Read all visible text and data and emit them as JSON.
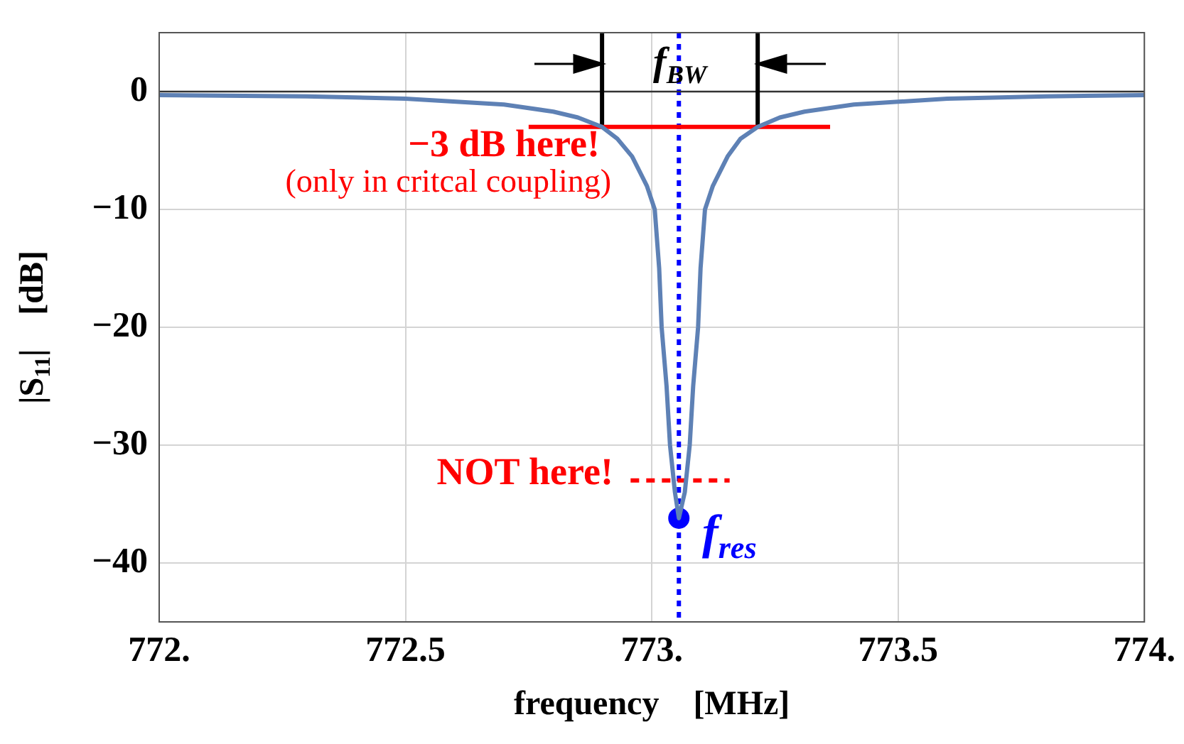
{
  "chart_data": {
    "type": "line",
    "xlabel": "frequency    [MHz]",
    "ylabel": "|S$_{11}$|    [dB]",
    "xlim": [
      772,
      774
    ],
    "xticks": [
      {
        "value": 772,
        "label": "772."
      },
      772.5,
      {
        "value": 773,
        "label": "773."
      },
      773.5,
      {
        "value": 774,
        "label": "774."
      }
    ],
    "ylim": [
      -45,
      5
    ],
    "yticks": [
      {
        "value": -40,
        "label": "−40"
      },
      {
        "value": -30,
        "label": "−30"
      },
      {
        "value": -20,
        "label": "−20"
      },
      {
        "value": -10,
        "label": "−10"
      },
      0
    ],
    "grid": true,
    "legend": false,
    "series": [
      {
        "type": "line",
        "color": "#5e81b5",
        "x": [
          772.0,
          772.3,
          772.5,
          772.7,
          772.8,
          772.85,
          772.899,
          772.93,
          772.96,
          772.99,
          773.006,
          773.015,
          773.02,
          773.03,
          773.037,
          773.047,
          773.055,
          773.067,
          773.077,
          773.084,
          773.094,
          773.099,
          773.108,
          773.124,
          773.154,
          773.18,
          773.215,
          773.26,
          773.31,
          773.41,
          773.6,
          773.8,
          774.0
        ],
        "values": [
          -0.3,
          -0.4,
          -0.6,
          -1.1,
          -1.7,
          -2.2,
          -3.0,
          -4.0,
          -5.5,
          -8,
          -10,
          -15,
          -20,
          -25,
          -30,
          -34,
          -36.2,
          -34,
          -30,
          -25,
          -20,
          -15,
          -10,
          -8,
          -5.5,
          -4.0,
          -3.0,
          -2.2,
          -1.7,
          -1.1,
          -0.6,
          -0.4,
          -0.3
        ]
      },
      {
        "type": "line",
        "color": "#ff0000",
        "x": [
          772.75,
          773.362
        ],
        "values": [
          -3,
          -3
        ]
      },
      {
        "type": "line",
        "color": "#ff0000",
        "line_style": "dashed",
        "x": [
          772.957,
          773.158
        ],
        "values": [
          -33,
          -33
        ]
      },
      {
        "type": "line",
        "color": "#000000",
        "x": [
          772.899,
          772.899
        ],
        "values": [
          -3,
          5
        ]
      },
      {
        "type": "line",
        "color": "#000000",
        "x": [
          773.215,
          773.215
        ],
        "values": [
          -3,
          5
        ]
      },
      {
        "type": "scatter",
        "color": "#0000ff",
        "marker": "circle",
        "x": [
          773.055
        ],
        "values": [
          -36.2
        ]
      }
    ],
    "ref_lines": [
      {
        "axis": "x",
        "value": 773.055,
        "color": "#0000ff",
        "line_style": "dotted"
      },
      {
        "axis": "y",
        "value": 0,
        "color": "#333333",
        "line_style": "solid"
      }
    ],
    "annotations": [
      {
        "text": "f$_{BW}$",
        "x": 773.057,
        "y": 2.3
      },
      "−3 dB here!",
      "(only in critcal coupling)",
      "NOT here!",
      "f$_{res}$"
    ]
  }
}
